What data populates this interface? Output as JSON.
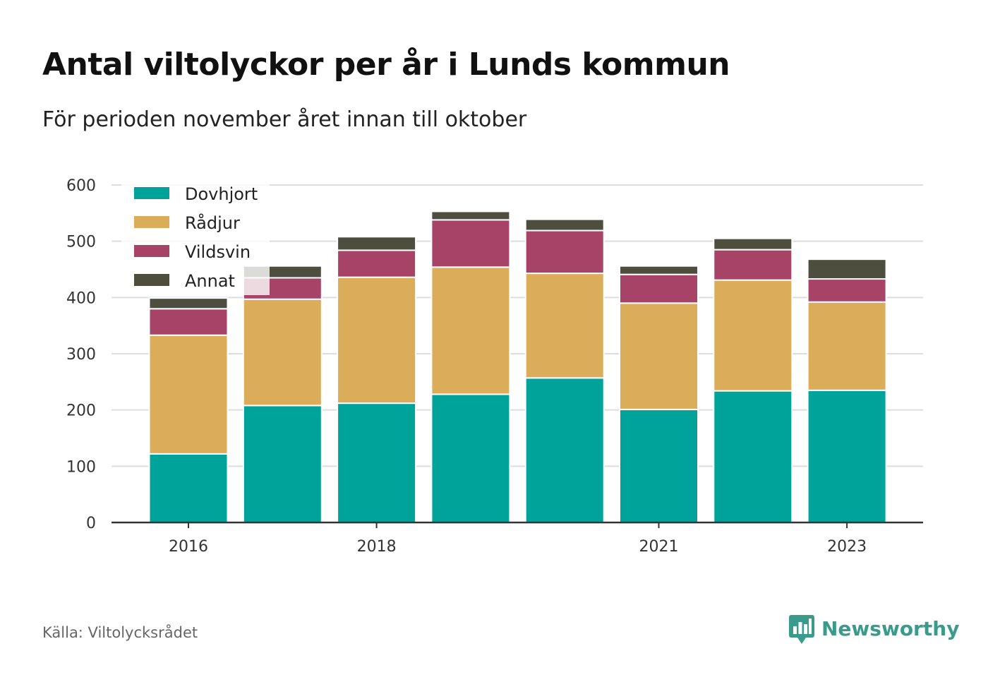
{
  "title": "Antal viltolyckor per år i Lunds kommun",
  "subtitle": "För perioden november året innan till oktober",
  "source": "Källa: Viltolycksrådet",
  "brand": {
    "name": "Newsworthy",
    "icon": "newsworthy-logo-icon",
    "color": "#3a9a8c"
  },
  "chart_data": {
    "type": "bar",
    "stacked": true,
    "categories": [
      "2016",
      "2017",
      "2018",
      "2019",
      "2020",
      "2021",
      "2022",
      "2023"
    ],
    "x_tick_labels": [
      "2016",
      "",
      "2018",
      "",
      "",
      "2021",
      "",
      "2023"
    ],
    "series": [
      {
        "name": "Dovhjort",
        "color": "#00a39a",
        "values": [
          122,
          208,
          212,
          228,
          257,
          201,
          234,
          235
        ]
      },
      {
        "name": "Rådjur",
        "color": "#dbac5a",
        "values": [
          211,
          189,
          224,
          226,
          186,
          189,
          197,
          157
        ]
      },
      {
        "name": "Vildsvin",
        "color": "#a64367",
        "values": [
          47,
          38,
          48,
          84,
          76,
          51,
          54,
          41
        ]
      },
      {
        "name": "Annat",
        "color": "#4d4e3e",
        "values": [
          19,
          21,
          24,
          15,
          20,
          15,
          20,
          35
        ]
      }
    ],
    "ylim": [
      0,
      600
    ],
    "yticks": [
      0,
      100,
      200,
      300,
      400,
      500,
      600
    ],
    "xlabel": "",
    "ylabel": "",
    "grid": true,
    "legend_position": "top-left"
  }
}
